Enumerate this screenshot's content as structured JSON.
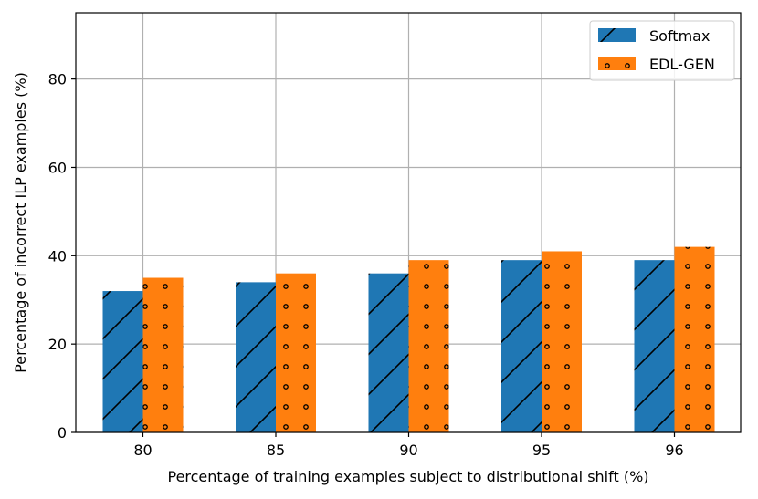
{
  "chart_data": {
    "type": "bar",
    "categories": [
      "80",
      "85",
      "90",
      "95",
      "96"
    ],
    "series": [
      {
        "name": "Softmax",
        "values": [
          32,
          34,
          36,
          39,
          39
        ],
        "color": "#1f77b4",
        "hatch": "diagonal"
      },
      {
        "name": "EDL-GEN",
        "values": [
          35,
          36,
          39,
          41,
          42
        ],
        "color": "#ff7f0e",
        "hatch": "dots"
      }
    ],
    "xlabel": "Percentage of training examples subject to distributional shift (%)",
    "ylabel": "Percentage of incorrect ILP examples (%)",
    "ylim": [
      0,
      95
    ],
    "yticks": [
      0,
      20,
      40,
      60,
      80
    ],
    "grid": true,
    "legend_position": "top-right"
  }
}
